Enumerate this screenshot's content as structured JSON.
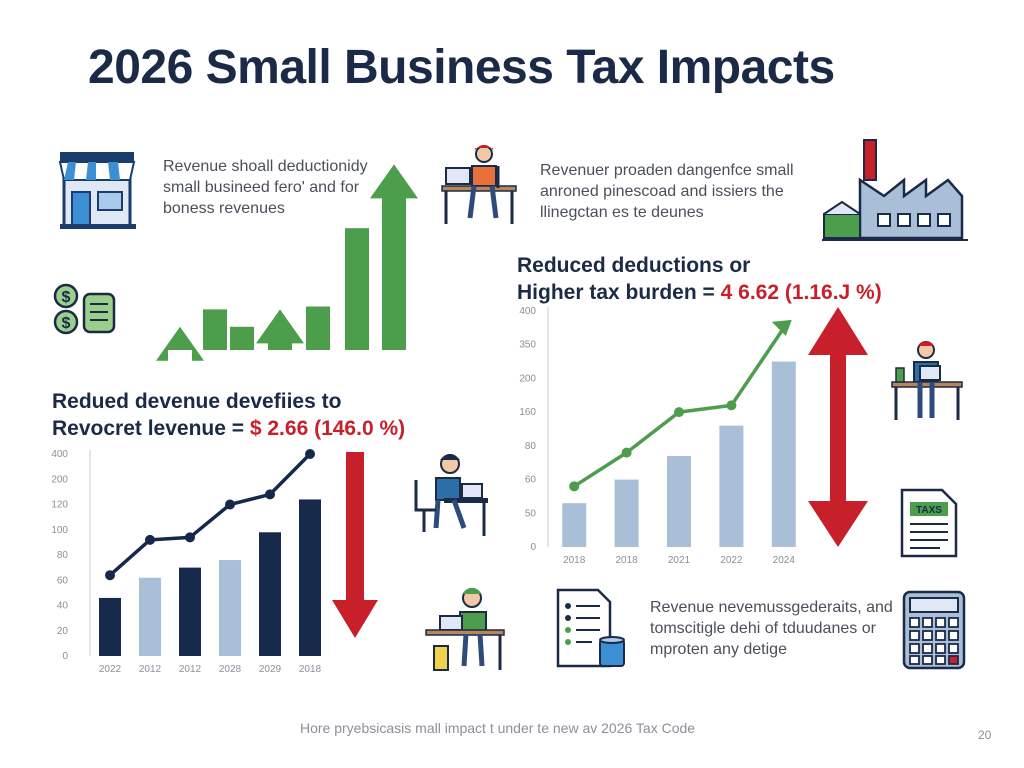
{
  "title": "2026 Small Business Tax Impacts",
  "top_left_text": [
    "Revenue shoall deductionidy",
    "small busineed fero' and for",
    "boness revenues"
  ],
  "top_right_text": [
    "Revenuer proaden dangenfce small",
    "anroned pinescoad and issiers the",
    "llinegctan es te deunes"
  ],
  "bottom_right_text": [
    "Revenue nevemussgederaits, and",
    "tomscitigle dehi of tduudanes or",
    "mproten any detige"
  ],
  "left_headline": {
    "line1": "Redued devenue devefiies to",
    "line2_prefix": "Revocret levenue = ",
    "line2_value": "$ 2.66 (146.0 %)"
  },
  "right_headline": {
    "line1": "Reduced deductions or",
    "line2_prefix": "Higher tax burden = ",
    "line2_value": "4 6.62 (1.16.J %)"
  },
  "footer": "Hore pryebsicasis mall impact t under te new av 2026 Tax Code",
  "page_number": "20",
  "colors": {
    "navy": "#16294a",
    "light_blue": "#a9bfd8",
    "green": "#4c9d4c",
    "red": "#c8202a",
    "line": "#16294a"
  },
  "icons": [
    "storefront-icon",
    "money-stack-icon",
    "person-laptop-icon",
    "factory-icon",
    "tax-document-icon",
    "checklist-icon",
    "calculator-icon"
  ],
  "chart_data": [
    {
      "type": "bar",
      "description_role": "decorative green growth bars with arrows",
      "values": [
        0.08,
        0.14,
        0.08,
        0.14,
        0.15,
        0.42,
        0.64
      ],
      "arrows_on": [
        0,
        3,
        6
      ],
      "unit": "relative height"
    },
    {
      "type": "bar",
      "categories": [
        "2022",
        "2012",
        "2012",
        "2028",
        "2029",
        "2018"
      ],
      "y_ticks": [
        "400",
        "200",
        "120",
        "100",
        "80",
        "60",
        "40",
        "20",
        "0"
      ],
      "bar_values": [
        2.3,
        3.1,
        3.5,
        3.8,
        4.9,
        6.2
      ],
      "bar_colors": [
        "navy",
        "light_blue",
        "navy",
        "light_blue",
        "navy",
        "navy"
      ],
      "line_values": [
        3.2,
        4.6,
        4.7,
        6.0,
        6.4,
        8.0
      ],
      "ylim": [
        0,
        8.0
      ],
      "trend": "down-arrow"
    },
    {
      "type": "bar",
      "categories": [
        "2018",
        "2018",
        "2021",
        "2022",
        "2024"
      ],
      "y_ticks": [
        "400",
        "350",
        "200",
        "160",
        "80",
        "60",
        "50",
        "0"
      ],
      "bar_values": [
        1.3,
        2.0,
        2.7,
        3.6,
        5.5
      ],
      "line_values": [
        1.8,
        2.8,
        4.0,
        4.2,
        6.5
      ],
      "ylim": [
        0,
        7.0
      ],
      "trend": "double-arrow"
    }
  ]
}
